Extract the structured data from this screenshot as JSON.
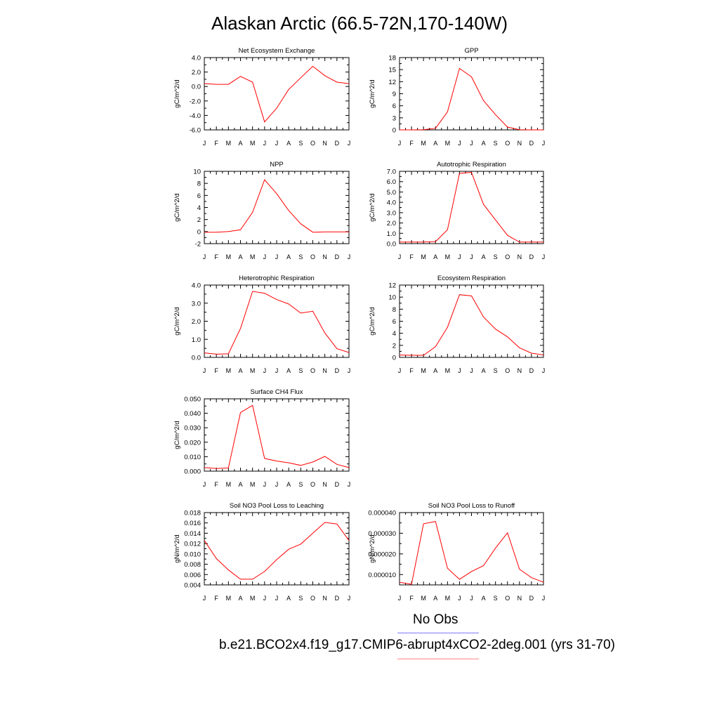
{
  "title": "Alaskan Arctic (66.5-72N,170-140W)",
  "colors": {
    "model": "#ff0000",
    "obs": "#7a7aff",
    "axis": "#000000"
  },
  "legend": {
    "obs_label": "No Obs",
    "model_label": "b.e21.BCO2x4.f19_g17.CMIP6-abrupt4xCO2-2deg.001 (yrs 31-70)"
  },
  "month_labels": [
    "J",
    "F",
    "M",
    "A",
    "M",
    "J",
    "J",
    "A",
    "S",
    "O",
    "N",
    "D",
    "J"
  ],
  "chart_data": [
    {
      "type": "line",
      "title": "Net Ecosystem Exchange",
      "ylabel": "gC/m^2/d",
      "ylim": [
        -6,
        4
      ],
      "yticks": [
        "4.0",
        "2.0",
        "0.0",
        "-2.0",
        "-4.0",
        "-6.0"
      ],
      "ytick_values": [
        4,
        2,
        0,
        -2,
        -4,
        -6
      ],
      "series": [
        {
          "values": [
            0.4,
            0.3,
            0.3,
            1.4,
            0.6,
            -4.9,
            -3.0,
            -0.4,
            1.2,
            2.8,
            1.5,
            0.6,
            0.4
          ]
        }
      ]
    },
    {
      "type": "line",
      "title": "GPP",
      "ylabel": "gC/m^2/d",
      "ylim": [
        0,
        18
      ],
      "yticks": [
        "18",
        "15",
        "12",
        "9",
        "6",
        "3",
        "0"
      ],
      "ytick_values": [
        18,
        15,
        12,
        9,
        6,
        3,
        0
      ],
      "series": [
        {
          "values": [
            0.0,
            0.0,
            0.05,
            0.4,
            4.5,
            15.3,
            13.2,
            7.3,
            3.8,
            0.7,
            0.05,
            0.0,
            0.0
          ]
        }
      ]
    },
    {
      "type": "line",
      "title": "NPP",
      "ylabel": "gC/m^2/d",
      "ylim": [
        -2,
        10
      ],
      "yticks": [
        "10",
        "8",
        "6",
        "4",
        "2",
        "0",
        "-2"
      ],
      "ytick_values": [
        10,
        8,
        6,
        4,
        2,
        0,
        -2
      ],
      "series": [
        {
          "values": [
            -0.1,
            -0.1,
            0.0,
            0.3,
            3.2,
            8.6,
            6.3,
            3.5,
            1.3,
            -0.1,
            -0.05,
            -0.05,
            -0.05
          ]
        }
      ]
    },
    {
      "type": "line",
      "title": "Autotrophic Respiration",
      "ylabel": "gC/m^2/d",
      "ylim": [
        0,
        7
      ],
      "yticks": [
        "7.0",
        "6.0",
        "5.0",
        "4.0",
        "3.0",
        "2.0",
        "1.0",
        "0.0"
      ],
      "ytick_values": [
        7,
        6,
        5,
        4,
        3,
        2,
        1,
        0
      ],
      "series": [
        {
          "values": [
            0.15,
            0.15,
            0.15,
            0.2,
            1.35,
            6.8,
            6.9,
            3.8,
            2.3,
            0.8,
            0.15,
            0.15,
            0.15
          ]
        }
      ]
    },
    {
      "type": "line",
      "title": "Heterotrophic Respiration",
      "ylabel": "gC/m^2/d",
      "ylim": [
        0,
        4
      ],
      "yticks": [
        "4.0",
        "3.0",
        "2.0",
        "1.0",
        "0.0"
      ],
      "ytick_values": [
        4,
        3,
        2,
        1,
        0
      ],
      "series": [
        {
          "values": [
            0.25,
            0.18,
            0.2,
            1.6,
            3.65,
            3.55,
            3.2,
            2.95,
            2.45,
            2.55,
            1.35,
            0.48,
            0.27
          ]
        }
      ]
    },
    {
      "type": "line",
      "title": "Ecosystem Respiration",
      "ylabel": "gC/m^2/d",
      "ylim": [
        0,
        12
      ],
      "yticks": [
        "12",
        "10",
        "8",
        "6",
        "4",
        "2",
        "0"
      ],
      "ytick_values": [
        12,
        10,
        8,
        6,
        4,
        2,
        0
      ],
      "series": [
        {
          "values": [
            0.4,
            0.35,
            0.35,
            1.8,
            5.0,
            10.4,
            10.2,
            6.7,
            4.7,
            3.4,
            1.6,
            0.7,
            0.4
          ]
        }
      ]
    },
    {
      "type": "line",
      "title": "Surface CH4 Flux",
      "ylabel": "gC/m^2/d",
      "ylim": [
        0,
        0.05
      ],
      "yticks": [
        "0.050",
        "0.040",
        "0.030",
        "0.020",
        "0.010",
        "0.000"
      ],
      "ytick_values": [
        0.05,
        0.04,
        0.03,
        0.02,
        0.01,
        0.0
      ],
      "series": [
        {
          "values": [
            0.0025,
            0.0018,
            0.0022,
            0.0405,
            0.0455,
            0.0088,
            0.007,
            0.0058,
            0.004,
            0.0063,
            0.0102,
            0.0047,
            0.0025
          ]
        }
      ]
    },
    {
      "type": "line",
      "title": "Soil NO3 Pool Loss to Leaching",
      "ylabel": "gN/m^2/d",
      "ylim": [
        0.004,
        0.018
      ],
      "yticks": [
        "0.018",
        "0.016",
        "0.014",
        "0.012",
        "0.010",
        "0.008",
        "0.006",
        "0.004"
      ],
      "ytick_values": [
        0.018,
        0.016,
        0.014,
        0.012,
        0.01,
        0.008,
        0.006,
        0.004
      ],
      "series": [
        {
          "values": [
            0.0126,
            0.0091,
            0.0069,
            0.0051,
            0.0051,
            0.0066,
            0.0089,
            0.0109,
            0.0119,
            0.014,
            0.0161,
            0.0158,
            0.0126
          ]
        }
      ]
    },
    {
      "type": "line",
      "title": "Soil NO3 Pool Loss to Runoff",
      "ylabel": "gN/m^2/d",
      "ylim": [
        5e-06,
        4e-05
      ],
      "yticks": [
        "0.000040",
        "0.000030",
        "0.000020",
        "0.000010"
      ],
      "ytick_values": [
        4e-05,
        3e-05,
        2e-05,
        1e-05
      ],
      "series": [
        {
          "values": [
            6.3e-06,
            5.3e-06,
            3.46e-05,
            3.57e-05,
            1.31e-05,
            7.7e-06,
            1.15e-05,
            1.43e-05,
            2.28e-05,
            3.02e-05,
            1.26e-05,
            8.5e-06,
            6.3e-06
          ]
        }
      ]
    }
  ]
}
